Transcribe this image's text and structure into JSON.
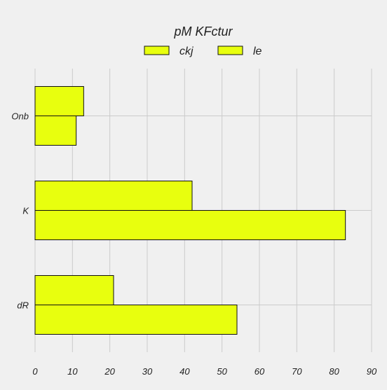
{
  "chart_data": {
    "type": "bar",
    "orientation": "horizontal",
    "title": "pM KFctur",
    "xlabel": "",
    "ylabel": "",
    "xlim": [
      0,
      90
    ],
    "x_ticks": [
      "0",
      "10",
      "20",
      "30",
      "40",
      "50",
      "60",
      "70",
      "80",
      "90"
    ],
    "categories": [
      "Onb",
      "K",
      "dR"
    ],
    "series": [
      {
        "name": "ckj",
        "values": [
          13,
          42,
          21
        ]
      },
      {
        "name": "le",
        "values": [
          11,
          83,
          54
        ]
      }
    ],
    "grid": true,
    "legend_position": "top-center",
    "bar_color": "#e8ff0e",
    "bar_edge_color": "#111111",
    "background_color": "#f0f0f0",
    "grid_color": "#cbcbcb"
  }
}
